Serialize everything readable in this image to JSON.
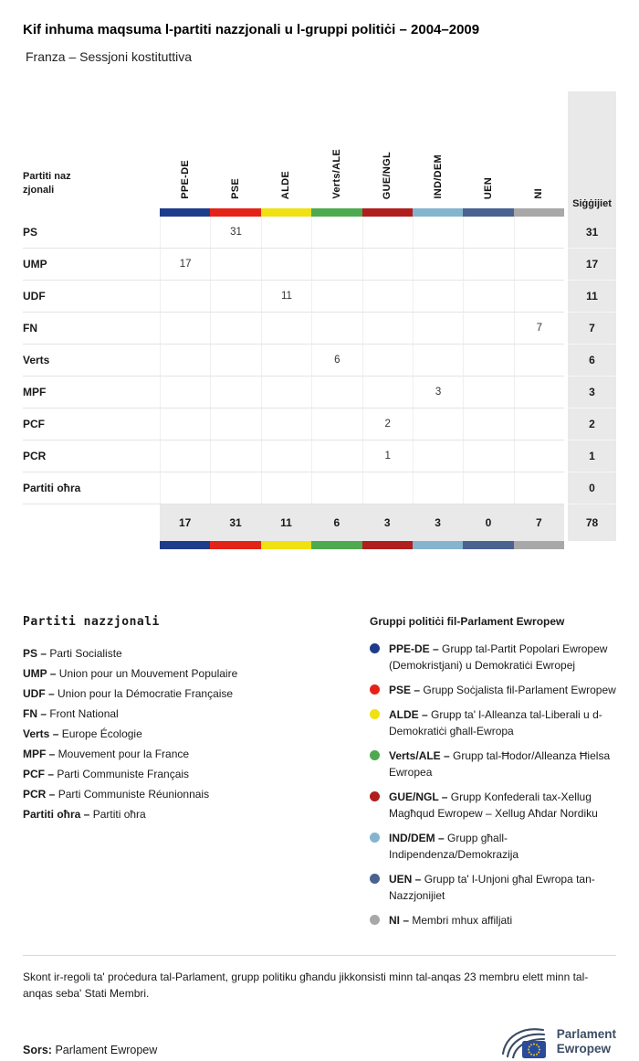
{
  "page": {
    "title": "Kif inhuma maqsuma l-partiti nazzjonali u l-gruppi politiċi – 2004–2009",
    "subtitle": "Franza – Sessjoni kostituttiva"
  },
  "table": {
    "row_header_label": "Partiti nazzjonali",
    "seats_label": "Siġġijiet",
    "groups": [
      {
        "id": "PPE-DE",
        "color": "#1e3c8c"
      },
      {
        "id": "PSE",
        "color": "#e42318"
      },
      {
        "id": "ALDE",
        "color": "#f0e112"
      },
      {
        "id": "Verts/ALE",
        "color": "#4daa4f"
      },
      {
        "id": "GUE/NGL",
        "color": "#b01e1e"
      },
      {
        "id": "IND/DEM",
        "color": "#85b4cf"
      },
      {
        "id": "UEN",
        "color": "#4a6290"
      },
      {
        "id": "NI",
        "color": "#a8a8a8"
      }
    ],
    "rows": [
      {
        "party": "PS",
        "values": [
          "",
          "31",
          "",
          "",
          "",
          "",
          "",
          ""
        ],
        "total": "31"
      },
      {
        "party": "UMP",
        "values": [
          "17",
          "",
          "",
          "",
          "",
          "",
          "",
          ""
        ],
        "total": "17"
      },
      {
        "party": "UDF",
        "values": [
          "",
          "",
          "11",
          "",
          "",
          "",
          "",
          ""
        ],
        "total": "11"
      },
      {
        "party": "FN",
        "values": [
          "",
          "",
          "",
          "",
          "",
          "",
          "",
          "7"
        ],
        "total": "7"
      },
      {
        "party": "Verts",
        "values": [
          "",
          "",
          "",
          "6",
          "",
          "",
          "",
          ""
        ],
        "total": "6"
      },
      {
        "party": "MPF",
        "values": [
          "",
          "",
          "",
          "",
          "",
          "3",
          "",
          ""
        ],
        "total": "3"
      },
      {
        "party": "PCF",
        "values": [
          "",
          "",
          "",
          "",
          "2",
          "",
          "",
          ""
        ],
        "total": "2"
      },
      {
        "party": "PCR",
        "values": [
          "",
          "",
          "",
          "",
          "1",
          "",
          "",
          ""
        ],
        "total": "1"
      },
      {
        "party": "Partiti oħra",
        "values": [
          "",
          "",
          "",
          "",
          "",
          "",
          "",
          ""
        ],
        "total": "0"
      }
    ],
    "totals": {
      "values": [
        "17",
        "31",
        "11",
        "6",
        "3",
        "3",
        "0",
        "7"
      ],
      "total": "78"
    }
  },
  "legend_parties": {
    "title": "Partiti nazzjonali",
    "items": [
      {
        "abbr": "PS",
        "name": "Parti Socialiste"
      },
      {
        "abbr": "UMP",
        "name": "Union pour un Mouvement Populaire"
      },
      {
        "abbr": "UDF",
        "name": "Union pour la Démocratie Française"
      },
      {
        "abbr": "FN",
        "name": "Front National"
      },
      {
        "abbr": "Verts",
        "name": "Europe Écologie"
      },
      {
        "abbr": "MPF",
        "name": "Mouvement pour la France"
      },
      {
        "abbr": "PCF",
        "name": "Parti Communiste Français"
      },
      {
        "abbr": "PCR",
        "name": "Parti Communiste Réunionnais"
      },
      {
        "abbr": "Partiti oħra",
        "name": "Partiti oħra"
      }
    ]
  },
  "legend_groups": {
    "title": "Gruppi politiċi fil-Parlament Ewropew",
    "items": [
      {
        "abbr": "PPE-DE",
        "name": "Grupp tal-Partit Popolari Ewropew (Demokristjani) u Demokratiċi Ewropej",
        "color": "#1e3c8c"
      },
      {
        "abbr": "PSE",
        "name": "Grupp Soċjalista fil-Parlament Ewropew",
        "color": "#e42318"
      },
      {
        "abbr": "ALDE",
        "name": "Grupp ta' l-Alleanza tal-Liberali u d-Demokratiċi għall-Ewropa",
        "color": "#f0e112"
      },
      {
        "abbr": "Verts/ALE",
        "name": "Grupp tal-Ħodor/Alleanza Ħielsa Ewropea",
        "color": "#4daa4f"
      },
      {
        "abbr": "GUE/NGL",
        "name": "Grupp Konfederali tax-Xellug Magħqud Ewropew – Xellug Aħdar Nordiku",
        "color": "#b01e1e"
      },
      {
        "abbr": "IND/DEM",
        "name": "Grupp għall-Indipendenza/Demokrazija",
        "color": "#85b4cf"
      },
      {
        "abbr": "UEN",
        "name": "Grupp ta' l-Unjoni għal Ewropa tan-Nazzjonijiet",
        "color": "#4a6290"
      },
      {
        "abbr": "NI",
        "name": "Membri mhux affiljati",
        "color": "#a8a8a8"
      }
    ]
  },
  "footnote": "Skont ir-regoli ta' proċedura tal-Parlament, grupp politiku għandu jikkonsisti minn tal-anqas 23 membru elett minn tal-anqas seba' Stati Membri.",
  "source": {
    "label": "Sors:",
    "value": "Parlament Ewropew"
  },
  "logo": {
    "line1": "Parlament",
    "line2": "Ewropew"
  },
  "chart_data": {
    "type": "table",
    "title": "Kif inhuma maqsuma l-partiti nazzjonali u l-gruppi politiċi – 2004–2009",
    "subtitle": "Franza – Sessjoni kostituttiva",
    "columns": [
      "PPE-DE",
      "PSE",
      "ALDE",
      "Verts/ALE",
      "GUE/NGL",
      "IND/DEM",
      "UEN",
      "NI"
    ],
    "rows": [
      {
        "party": "PS",
        "group": "PSE",
        "seats": 31
      },
      {
        "party": "UMP",
        "group": "PPE-DE",
        "seats": 17
      },
      {
        "party": "UDF",
        "group": "ALDE",
        "seats": 11
      },
      {
        "party": "FN",
        "group": "NI",
        "seats": 7
      },
      {
        "party": "Verts",
        "group": "Verts/ALE",
        "seats": 6
      },
      {
        "party": "MPF",
        "group": "IND/DEM",
        "seats": 3
      },
      {
        "party": "PCF",
        "group": "GUE/NGL",
        "seats": 2
      },
      {
        "party": "PCR",
        "group": "GUE/NGL",
        "seats": 1
      },
      {
        "party": "Partiti oħra",
        "group": null,
        "seats": 0
      }
    ],
    "column_totals": [
      17,
      31,
      11,
      6,
      3,
      3,
      0,
      7
    ],
    "grand_total": 78
  }
}
